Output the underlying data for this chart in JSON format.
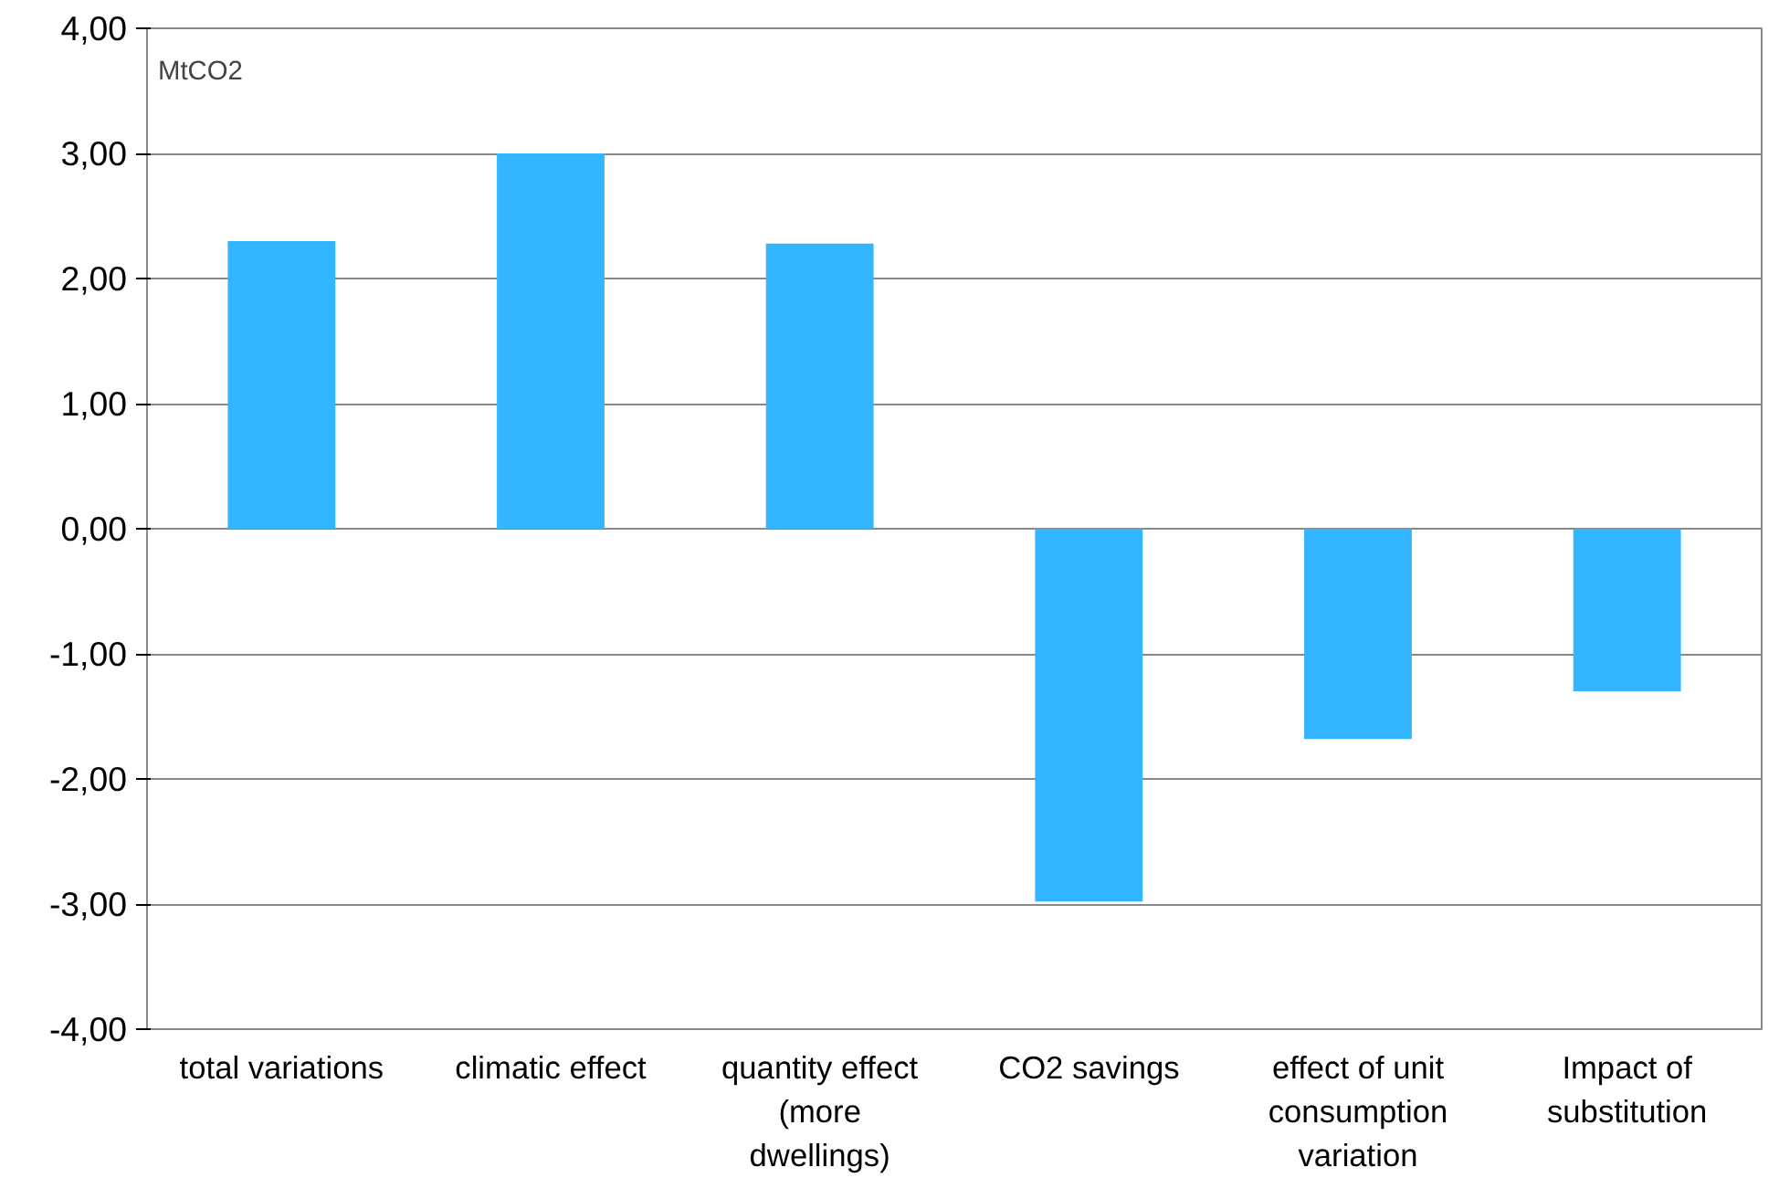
{
  "chart_data": {
    "type": "bar",
    "ylabel": "MtCO2",
    "categories": [
      "total variations",
      "climatic effect",
      "quantity effect\n(more\ndwellings)",
      "CO2 savings",
      "effect of unit\nconsumption\nvariation",
      "Impact of\nsubstitution"
    ],
    "values": [
      2.3,
      3.0,
      2.28,
      -2.98,
      -1.68,
      -1.3
    ],
    "color": "#33b5ff",
    "ylim": [
      -4,
      4
    ],
    "yticks": [
      {
        "value": -4,
        "label": "-4,00"
      },
      {
        "value": -3,
        "label": "-3,00"
      },
      {
        "value": -2,
        "label": "-2,00"
      },
      {
        "value": -1,
        "label": "-1,00"
      },
      {
        "value": 0,
        "label": "0,00"
      },
      {
        "value": 1,
        "label": "1,00"
      },
      {
        "value": 2,
        "label": "2,00"
      },
      {
        "value": 3,
        "label": "3,00"
      },
      {
        "value": 4,
        "label": "4,00"
      }
    ],
    "grid": "y"
  }
}
